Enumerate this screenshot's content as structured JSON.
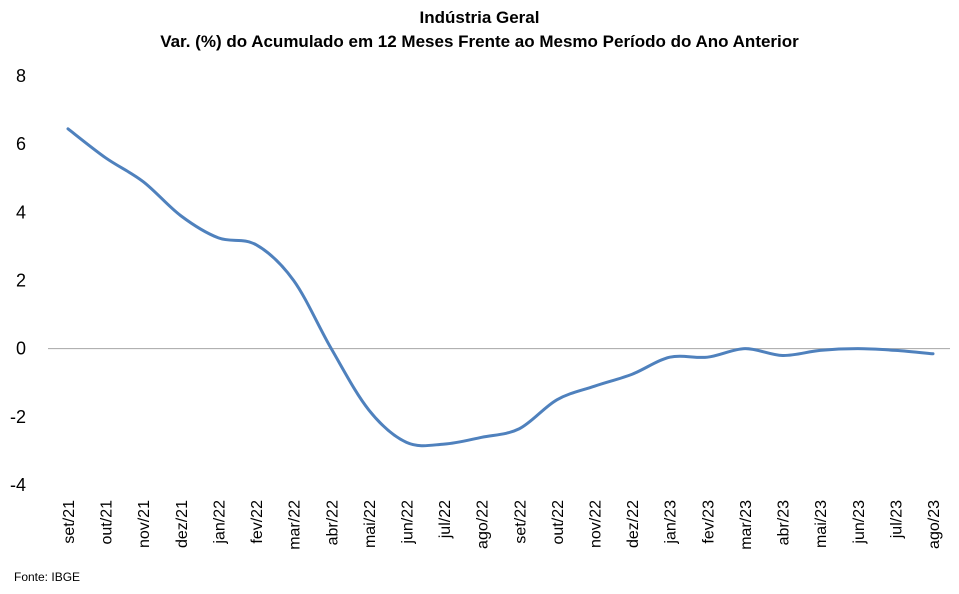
{
  "chart_data": {
    "type": "line",
    "title": "Indústria  Geral",
    "subtitle": "Var. (%) do Acumulado em 12 Meses Frente ao Mesmo Período do Ano Anterior",
    "xlabel": "",
    "ylabel": "",
    "ylim": [
      -4,
      8
    ],
    "yticks": [
      "8",
      "6",
      "4",
      "2",
      "0",
      "-2",
      "-4"
    ],
    "grid": false,
    "legend": "none",
    "line_color": "#4F81BD",
    "x": [
      "set/21",
      "out/21",
      "nov/21",
      "dez/21",
      "jan/22",
      "fev/22",
      "mar/22",
      "abr/22",
      "mai/22",
      "jun/22",
      "jul/22",
      "ago/22",
      "set/22",
      "out/22",
      "nov/22",
      "dez/22",
      "jan/23",
      "fev/23",
      "mar/23",
      "abr/23",
      "mai/23",
      "jun/23",
      "jul/23",
      "ago/23"
    ],
    "series": [
      {
        "values": [
          6.45,
          5.6,
          4.9,
          3.9,
          3.25,
          3.05,
          2.0,
          0.0,
          -1.8,
          -2.75,
          -2.8,
          -2.6,
          -2.35,
          -1.5,
          -1.1,
          -0.75,
          -0.25,
          -0.25,
          0.0,
          -0.2,
          -0.05,
          0.0,
          -0.05,
          -0.15
        ]
      }
    ]
  },
  "source": "Fonte: IBGE"
}
